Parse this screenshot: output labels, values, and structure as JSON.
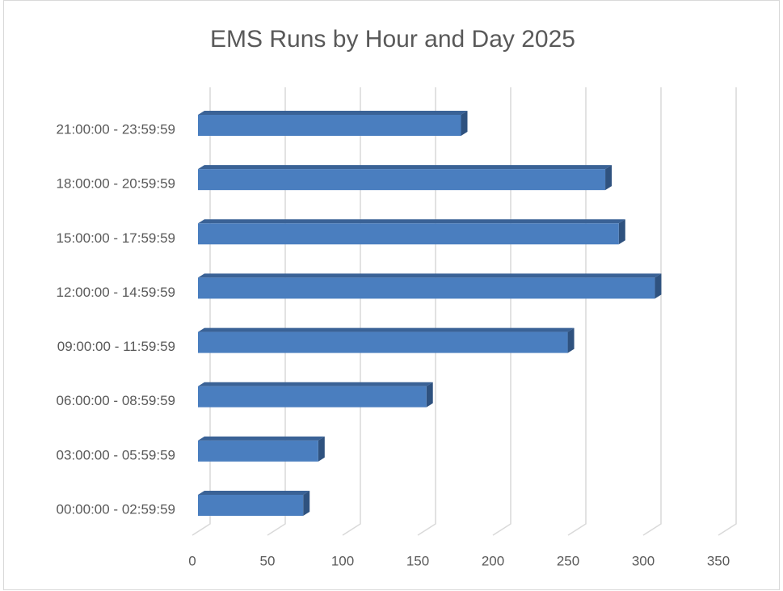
{
  "chart_data": {
    "type": "bar3d_horizontal",
    "title": "EMS Runs by Hour and Day 2025",
    "categories": [
      "00:00:00 - 02:59:59",
      "03:00:00 - 05:59:59",
      "06:00:00 - 08:59:59",
      "09:00:00 - 11:59:59",
      "12:00:00 - 14:59:59",
      "15:00:00 - 17:59:59",
      "18:00:00 - 20:59:59",
      "21:00:00 - 23:59:59"
    ],
    "values": [
      70,
      80,
      152,
      246,
      304,
      280,
      271,
      175
    ],
    "color": "#4a7ebf",
    "xlim": [
      0,
      350
    ],
    "xticks": [
      0,
      50,
      100,
      150,
      200,
      250,
      300,
      350
    ],
    "grid": true
  }
}
